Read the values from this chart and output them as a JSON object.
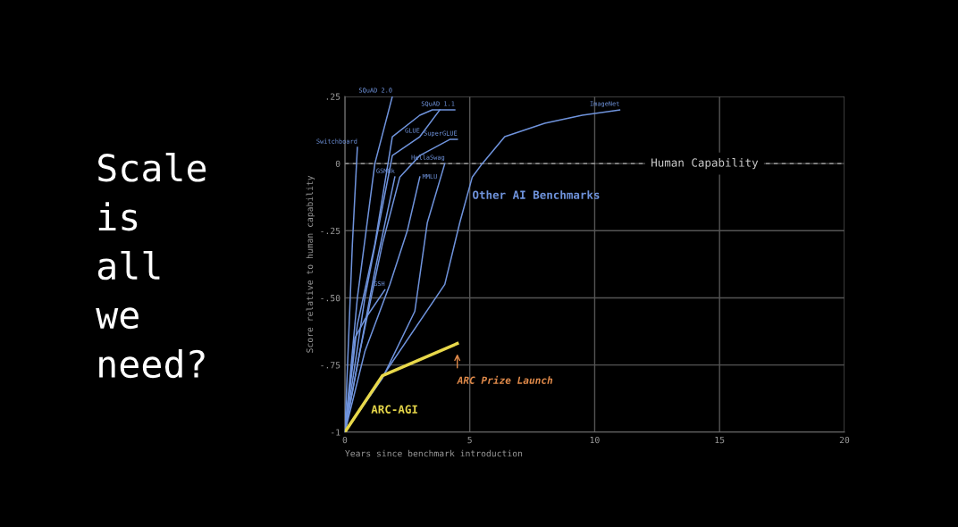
{
  "chart_data": {
    "type": "line",
    "title": "Scale\nis\nall\nwe\nneed?",
    "xlabel": "Years since benchmark introduction",
    "ylabel": "Score relative to human capability",
    "xlim": [
      0,
      20
    ],
    "xticks": [
      0,
      5,
      10,
      15,
      20
    ],
    "ylim": [
      -1,
      0.25
    ],
    "yticks": [
      {
        "value": 0.25,
        "label": ".25"
      },
      0,
      {
        "value": -0.25,
        "label": "-.25"
      },
      {
        "value": -0.5,
        "label": "-.50"
      },
      {
        "value": -0.75,
        "label": "-.75"
      },
      -1
    ],
    "grid": true,
    "series": [
      {
        "name": "Switchboard",
        "color": "#6f93dc",
        "x": [
          0,
          0.3,
          0.5
        ],
        "values": [
          -1,
          -0.3,
          0.06
        ]
      },
      {
        "name": "SQuAD 2.0",
        "color": "#6f93dc",
        "x": [
          0,
          0.5,
          1.2,
          1.9
        ],
        "values": [
          -1,
          -0.5,
          0,
          0.25
        ]
      },
      {
        "name": "SQuAD 1.1",
        "color": "#6f93dc",
        "x": [
          0,
          0.5,
          1.2,
          1.9,
          3.0,
          3.5,
          4.4
        ],
        "values": [
          -1,
          -0.6,
          -0.3,
          0.1,
          0.18,
          0.2,
          0.2
        ]
      },
      {
        "name": "GLUE",
        "color": "#6f93dc",
        "x": [
          0,
          0.8,
          1.9,
          3.0,
          3.8
        ],
        "values": [
          -1,
          -0.5,
          0.03,
          0.1,
          0.2
        ]
      },
      {
        "name": "SuperGLUE",
        "color": "#6f93dc",
        "x": [
          0,
          0.6,
          1.5,
          2.2,
          3.0,
          4.2,
          4.5
        ],
        "values": [
          -1,
          -0.7,
          -0.3,
          -0.05,
          0.03,
          0.09,
          0.09
        ]
      },
      {
        "name": "HellaSwag",
        "color": "#6f93dc",
        "x": [
          0,
          1.5,
          2.8,
          3.3,
          4.0
        ],
        "values": [
          -1,
          -0.8,
          -0.55,
          -0.22,
          0
        ]
      },
      {
        "name": "MMLU",
        "color": "#6f93dc",
        "x": [
          0,
          0.8,
          1.8,
          2.5,
          3.0
        ],
        "values": [
          -1,
          -0.7,
          -0.45,
          -0.25,
          -0.05
        ]
      },
      {
        "name": "GSM8k",
        "color": "#6f93dc",
        "x": [
          0,
          0.5,
          1.2,
          2.0
        ],
        "values": [
          -1,
          -0.75,
          -0.4,
          -0.05
        ]
      },
      {
        "name": "GSH",
        "color": "#6f93dc",
        "x": [
          0,
          0.4,
          0.8,
          1.6
        ],
        "values": [
          -1,
          -0.65,
          -0.58,
          -0.47
        ]
      },
      {
        "name": "ImageNet",
        "color": "#6f93dc",
        "x": [
          0,
          4.0,
          4.6,
          5.1,
          5.5,
          6.4,
          8.0,
          9.5,
          11.0
        ],
        "values": [
          -1,
          -0.45,
          -0.22,
          -0.05,
          0,
          0.1,
          0.15,
          0.18,
          0.2
        ]
      },
      {
        "name": "ARC-AGI",
        "color": "#e8d84a",
        "x": [
          0,
          1.5,
          4.5
        ],
        "values": [
          -1,
          -0.79,
          -0.67
        ]
      }
    ],
    "ref_lines": [
      {
        "axis": "y",
        "value": 0,
        "label": "Human Capability",
        "color": "#aaaaaa",
        "line_style": "dashed"
      }
    ],
    "annotations": [
      {
        "text": "Other AI Benchmarks",
        "x": 5.1,
        "y": -0.12
      },
      "ARC Prize Launch"
    ]
  }
}
